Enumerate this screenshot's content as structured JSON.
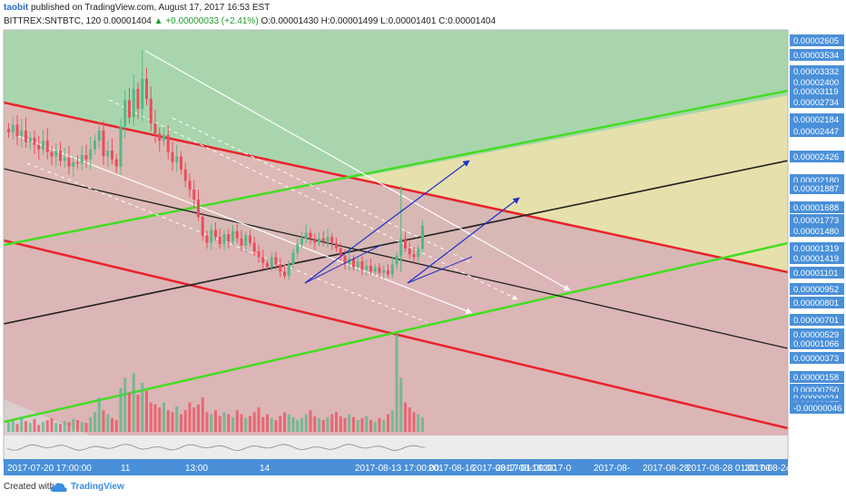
{
  "header": {
    "user": "taobit",
    "published": " published on TradingView.com, August 17, 2017 16:53 EST",
    "symbol": "BITTREX:SNTBTC, 120",
    "last": "0.00001404",
    "change": "+0.00000033 (+2.41%)",
    "open": "O:0.00001430",
    "high": "H:0.00001499",
    "low": "L:0.00001401",
    "close": "C:0.00001404"
  },
  "footer": {
    "created_with": "Created with",
    "brand": "TradingView"
  },
  "chart_data": {
    "type": "candlestick",
    "y_axis_labels": [
      "0.00002605",
      "0.00003534",
      "0.00003332",
      "0.00002400",
      "0.00003119",
      "0.00002734",
      "0.00002184",
      "0.00002447",
      "0.00002426",
      "0.00002180",
      "0.00001887",
      "0.00001688",
      "0.00001773",
      "0.00001480",
      "0.00001319",
      "0.00001419",
      "0.00001101",
      "0.00000952",
      "0.00000801",
      "0.00000701",
      "0.00000529",
      "0.00001066",
      "0.00000373",
      "0.00000158",
      "0.00000750",
      "0.00000024",
      "0.00000077",
      "-0.00000046"
    ],
    "x_axis_labels": [
      "2017-07-20 17:00:00",
      "11",
      "13:00",
      "14",
      "2017-08-13 17:00:00",
      "2017-08-16",
      "2017-08-17 01:00:00",
      "2017-08-18",
      "2017-0",
      "2017-08-",
      "2017-08-28",
      "2017-08-28 01:00:00",
      "2017-08-24"
    ],
    "ylim": [
      -4.6e-07,
      2.605e-05
    ],
    "candle_closes": [
      2.05e-05,
      2.1e-05,
      2.02e-05,
      2.06e-05,
      1.98e-05,
      2.01e-05,
      1.96e-05,
      1.93e-05,
      1.99e-05,
      1.91e-05,
      1.88e-05,
      1.92e-05,
      1.85e-05,
      1.87e-05,
      1.81e-05,
      1.84e-05,
      1.83e-05,
      1.89e-05,
      1.86e-05,
      1.93e-05,
      1.99e-05,
      2.06e-05,
      1.88e-05,
      1.92e-05,
      1.86e-05,
      1.81e-05,
      2.09e-05,
      2.27e-05,
      2.15e-05,
      2.35e-05,
      2.21e-05,
      2.42e-05,
      2.28e-05,
      2.11e-05,
      2.04e-05,
      1.99e-05,
      2.03e-05,
      1.91e-05,
      1.84e-05,
      1.88e-05,
      1.79e-05,
      1.71e-05,
      1.65e-05,
      1.58e-05,
      1.46e-05,
      1.33e-05,
      1.28e-05,
      1.37e-05,
      1.32e-05,
      1.27e-05,
      1.34e-05,
      1.29e-05,
      1.36e-05,
      1.31e-05,
      1.26e-05,
      1.33e-05,
      1.28e-05,
      1.22e-05,
      1.18e-05,
      1.14e-05,
      1.11e-05,
      1.18e-05,
      1.13e-05,
      1.08e-05,
      1.05e-05,
      1.13e-05,
      1.21e-05,
      1.27e-05,
      1.31e-05,
      1.35e-05,
      1.31e-05,
      1.28e-05,
      1.31e-05,
      1.29e-05,
      1.32e-05,
      1.28e-05,
      1.24e-05,
      1.19e-05,
      1.13e-05,
      1.17e-05,
      1.11e-05,
      1.15e-05,
      1.09e-05,
      1.12e-05,
      1.08e-05,
      1.11e-05,
      1.07e-05,
      1.09e-05,
      1.06e-05,
      1.13e-05,
      1.19e-05,
      1.31e-05,
      1.24e-05,
      1.2e-05,
      1.18e-05,
      1.24e-05,
      1.4e-05
    ],
    "volume_relative": [
      0.1,
      0.12,
      0.08,
      0.15,
      0.11,
      0.09,
      0.13,
      0.07,
      0.1,
      0.12,
      0.14,
      0.09,
      0.08,
      0.11,
      0.1,
      0.13,
      0.12,
      0.1,
      0.09,
      0.15,
      0.2,
      0.35,
      0.22,
      0.18,
      0.14,
      0.12,
      0.45,
      0.55,
      0.4,
      0.6,
      0.38,
      0.5,
      0.42,
      0.3,
      0.28,
      0.25,
      0.3,
      0.22,
      0.2,
      0.26,
      0.18,
      0.22,
      0.3,
      0.25,
      0.28,
      0.35,
      0.2,
      0.18,
      0.22,
      0.16,
      0.2,
      0.18,
      0.15,
      0.22,
      0.18,
      0.14,
      0.16,
      0.2,
      0.25,
      0.15,
      0.18,
      0.14,
      0.12,
      0.16,
      0.2,
      0.18,
      0.15,
      0.12,
      0.14,
      0.18,
      0.22,
      0.16,
      0.14,
      0.12,
      0.15,
      0.18,
      0.2,
      0.16,
      0.14,
      0.18,
      0.15,
      0.12,
      0.14,
      0.16,
      0.12,
      0.1,
      0.14,
      0.12,
      0.18,
      0.22,
      1.0,
      0.55,
      0.3,
      0.25,
      0.2,
      0.18,
      0.15
    ],
    "colors": {
      "up": "#53b987",
      "down": "#eb4d5c",
      "green_zone": "#a9d5ad",
      "yellow_zone": "#e6e0ac",
      "red_zone": "#dbb5b6",
      "red_line": "#e8232a",
      "green_line": "#44dd22",
      "black_line": "#222222",
      "blue_arrow": "#1c2fc8",
      "axis_label_bg": "#4a90d9"
    }
  }
}
